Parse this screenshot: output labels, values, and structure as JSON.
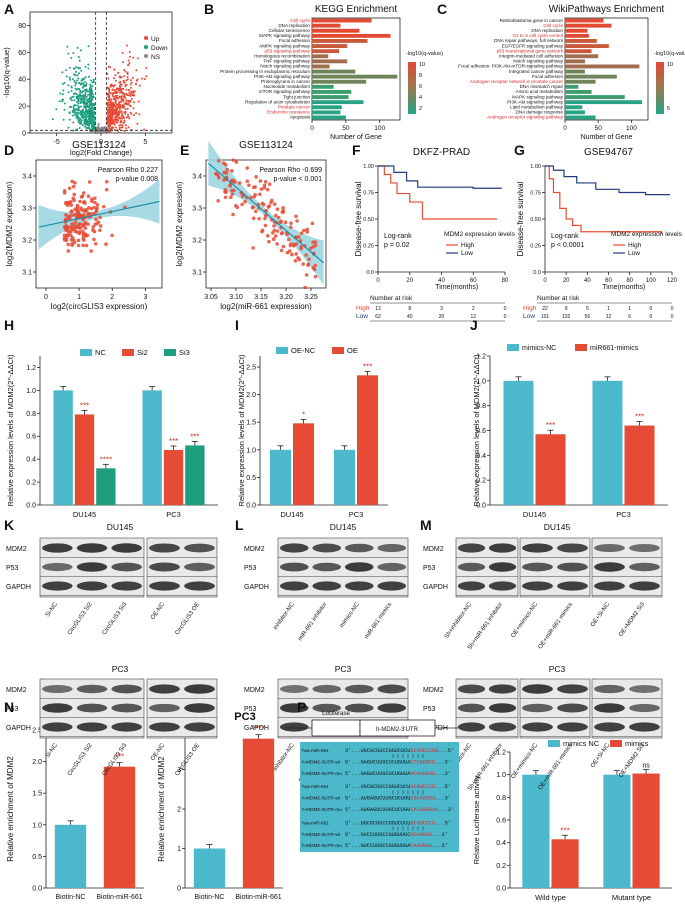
{
  "colors": {
    "teal": "#4bb8cc",
    "red": "#e64b35",
    "green": "#1e9e7e",
    "navy": "#1f3d7a",
    "up": "#e64b35",
    "down": "#1e9e7e",
    "ns": "#888888",
    "blot_bg": "#e9e9e9",
    "band": "#2b2b2b",
    "seq_bg": "#4bb8cc"
  },
  "panels": {
    "A": {
      "letter": "A",
      "xlabel": "log2(Fold Change)",
      "ylabel": "-log10(q-value)",
      "legend": [
        "Up",
        "Down",
        "NS"
      ],
      "xticks": [
        "-5",
        "0",
        "5"
      ],
      "yticks": [
        "0",
        "20",
        "40",
        "60",
        "80"
      ]
    },
    "B": {
      "letter": "B",
      "title": "KEGG Enrichment",
      "xlabel": "Number of Gene",
      "colorbar_title": "-log10(q-value)",
      "colorbar_ticks": [
        "10",
        "8",
        "6",
        "4",
        "2"
      ],
      "xticks": [
        "0",
        "50",
        "100"
      ],
      "items": [
        {
          "label": "Cell cycle",
          "value": 88,
          "highlight": true
        },
        {
          "label": "DNA replication",
          "value": 42,
          "highlight": false
        },
        {
          "label": "Cellular senescence",
          "value": 70,
          "highlight": false
        },
        {
          "label": "MAPK signaling pathway",
          "value": 116,
          "highlight": false
        },
        {
          "label": "Focal adhesion",
          "value": 82,
          "highlight": false
        },
        {
          "label": "AMPK signaling pathway",
          "value": 52,
          "highlight": false
        },
        {
          "label": "p53 signaling pathway",
          "value": 40,
          "highlight": true
        },
        {
          "label": "Homologous recombination",
          "value": 24,
          "highlight": false
        },
        {
          "label": "TNF signaling pathway",
          "value": 52,
          "highlight": false
        },
        {
          "label": "Notch signaling pathway",
          "value": 26,
          "highlight": false
        },
        {
          "label": "Protein processing in endoplasmic reticulum",
          "value": 64,
          "highlight": false
        },
        {
          "label": "PI3K-Akt signaling pathway",
          "value": 126,
          "highlight": false
        },
        {
          "label": "Proteoglycans in cancer",
          "value": 80,
          "highlight": false
        },
        {
          "label": "Nucleotide metabolism",
          "value": 32,
          "highlight": false
        },
        {
          "label": "mTOR signaling pathway",
          "value": 58,
          "highlight": false
        },
        {
          "label": "Tight junction",
          "value": 54,
          "highlight": false
        },
        {
          "label": "Regulation of actin cytoskeleton",
          "value": 76,
          "highlight": false
        },
        {
          "label": "Prostate cancer",
          "value": 44,
          "highlight": true
        },
        {
          "label": "Endocrine resistance",
          "value": 42,
          "highlight": true
        },
        {
          "label": "Apoptosis",
          "value": 50,
          "highlight": false
        }
      ]
    },
    "C": {
      "letter": "C",
      "title": "WikiPathways Enrichment",
      "xlabel": "Number of Gene",
      "colorbar_title": "-log10(q-value)",
      "colorbar_ticks": [
        "10",
        "5"
      ],
      "xticks": [
        "0",
        "50",
        "100"
      ],
      "items": [
        {
          "label": "Retinoblastoma gene in cancer",
          "value": 58,
          "highlight": false
        },
        {
          "label": "Cell cycle",
          "value": 70,
          "highlight": true
        },
        {
          "label": "DNA replication",
          "value": 34,
          "highlight": false
        },
        {
          "label": "G1 to S cell cycle control",
          "value": 36,
          "highlight": true
        },
        {
          "label": "DNA repair pathways, full network",
          "value": 48,
          "highlight": false
        },
        {
          "label": "EGF/EGFR signaling pathway",
          "value": 66,
          "highlight": false
        },
        {
          "label": "p53 transcriptional gene network",
          "value": 40,
          "highlight": true
        },
        {
          "label": "Integrin-mediated cell adhesion",
          "value": 50,
          "highlight": false
        },
        {
          "label": "Notch signaling pathway",
          "value": 30,
          "highlight": false
        },
        {
          "label": "Focal adhesion: PI3K-Akt-mTOR-signaling pathway",
          "value": 112,
          "highlight": false
        },
        {
          "label": "Integrated cancer pathway",
          "value": 30,
          "highlight": false
        },
        {
          "label": "Focal adhesion",
          "value": 78,
          "highlight": false
        },
        {
          "label": "Androgen receptor network in prostate cancer",
          "value": 46,
          "highlight": true
        },
        {
          "label": "DNA mismatch repair",
          "value": 20,
          "highlight": false
        },
        {
          "label": "Amino acid metabolism",
          "value": 40,
          "highlight": false
        },
        {
          "label": "MAPK signaling pathway",
          "value": 90,
          "highlight": false
        },
        {
          "label": "PI3K-Akt signaling pathway",
          "value": 116,
          "highlight": false
        },
        {
          "label": "Lipid metabolism pathway",
          "value": 26,
          "highlight": false
        },
        {
          "label": "DNA damage response",
          "value": 30,
          "highlight": false
        },
        {
          "label": "Androgen receptor signaling pathway",
          "value": 46,
          "highlight": true
        }
      ]
    },
    "D": {
      "letter": "D",
      "title": "GSE113124",
      "stat1": "Pearson Rho 0.227",
      "stat2": "p-value 0.008",
      "xlabel": "log2(circGLIS3 expression)",
      "ylabel": "log2(MDM2 expression)",
      "xticks": [
        "0",
        "1",
        "2",
        "3"
      ],
      "yticks": [
        "3.1",
        "3.2",
        "3.3",
        "3.4"
      ]
    },
    "E": {
      "letter": "E",
      "title": "GSE113124",
      "stat1": "Pearson Rho -0.699",
      "stat2": "p-value < 0.001",
      "xlabel": "log2(miR-661 expression)",
      "ylabel": "log2(MDM2 expression)",
      "xticks": [
        "3.05",
        "3.10",
        "3.15",
        "3.20",
        "3.25"
      ],
      "yticks": [
        "3.1",
        "3.2",
        "3.3",
        "3.4"
      ]
    },
    "F": {
      "letter": "F",
      "title": "DKFZ-PRAD",
      "ylabel": "Disease-free survival",
      "xlabel": "Time(months)",
      "logrank1": "Log-rank",
      "logrank2": "p = 0.02",
      "legend_title": "MDM2 expression levels",
      "legend_high": "High",
      "legend_low": "Low",
      "xticks": [
        "0",
        "20",
        "40",
        "60",
        "80"
      ],
      "yticks": [
        "0.0",
        "0.25",
        "0.50",
        "0.75",
        "1.00"
      ],
      "risk_title": "Number at risk",
      "risk_high_label": "High",
      "risk_low_label": "Low",
      "risk_high": [
        "13",
        "8",
        "3",
        "2",
        "0"
      ],
      "risk_low": [
        "62",
        "40",
        "20",
        "12",
        "0"
      ]
    },
    "G": {
      "letter": "G",
      "title": "GSE94767",
      "ylabel": "Disease-free survival",
      "xlabel": "Time(months)",
      "logrank1": "Log-rank",
      "logrank2": "p < 0.0001",
      "legend_title": "MDM2 expression levels",
      "legend_high": "High",
      "legend_low": "Low",
      "xticks": [
        "0",
        "20",
        "40",
        "60",
        "80",
        "100",
        "120"
      ],
      "yticks": [
        "0.0",
        "0.25",
        "0.50",
        "0.75",
        "1.00"
      ],
      "risk_title": "Number at risk",
      "risk_high_label": "High",
      "risk_low_label": "Low",
      "risk_high": [
        "22",
        "9",
        "5",
        "1",
        "1",
        "0",
        "0"
      ],
      "risk_low": [
        "101",
        "132",
        "56",
        "12",
        "6",
        "0",
        "0"
      ]
    },
    "H": {
      "letter": "H",
      "ylabel": "Relative expression levels of MDM2(2^-ΔΔCt)",
      "legend": [
        "NC",
        "Si2",
        "Si3"
      ],
      "groups": [
        "DU145",
        "PC3"
      ],
      "values": [
        [
          1.0,
          0.79,
          0.32
        ],
        [
          1.0,
          0.48,
          0.52
        ]
      ],
      "sig": [
        [
          "",
          "***",
          "****"
        ],
        [
          "",
          "***",
          "***"
        ]
      ],
      "yticks": [
        "0.0",
        "0.2",
        "0.4",
        "0.6",
        "0.8",
        "1.0",
        "1.2"
      ],
      "ymax": 1.3
    },
    "I": {
      "letter": "I",
      "ylabel": "Relative expression levels of MDM2(2^-ΔΔCt)",
      "legend": [
        "OE-NC",
        "OE"
      ],
      "groups": [
        "DU145",
        "PC3"
      ],
      "values": [
        [
          1.0,
          1.48
        ],
        [
          1.0,
          2.35
        ]
      ],
      "sig": [
        [
          "",
          "*"
        ],
        [
          "",
          "***"
        ]
      ],
      "yticks": [
        "0.0",
        "0.5",
        "1.0",
        "1.5",
        "2.0",
        "2.5"
      ],
      "ymax": 2.7
    },
    "J": {
      "letter": "J",
      "ylabel": "Relative expression levels of MDM2(2^-ΔΔCt)",
      "legend": [
        "mimics-NC",
        "miR661-mimics"
      ],
      "groups": [
        "DU145",
        "PC3"
      ],
      "values": [
        [
          1.0,
          0.57
        ],
        [
          1.0,
          0.64
        ]
      ],
      "sig": [
        [
          "",
          "***"
        ],
        [
          "",
          "***"
        ]
      ],
      "yticks": [
        "0.0",
        "0.2",
        "0.4",
        "0.6",
        "0.8",
        "1.0",
        "1.2"
      ],
      "ymax": 1.2
    },
    "K": {
      "letter": "K",
      "cell1": "DU145",
      "cell2": "PC3",
      "rows": [
        "MDM2",
        "P53",
        "GAPDH"
      ],
      "lanes_left": [
        "Si-NC",
        "CircGLIS3 Si2",
        "CircGLIS3 Si3"
      ],
      "lanes_right": [
        "OE-NC",
        "CircGLIS3 OE"
      ]
    },
    "L": {
      "letter": "L",
      "cell1": "DU145",
      "cell2": "PC3",
      "rows": [
        "MDM2",
        "P53",
        "GAPDH"
      ],
      "lanes": [
        "inhibitor-NC",
        "miR-661 inhibitor",
        "mimics-NC",
        "miR-661 mimics"
      ]
    },
    "M": {
      "letter": "M",
      "cell1": "DU145",
      "cell2": "PC3",
      "rows": [
        "MDM2",
        "P53",
        "GAPDH"
      ],
      "lanes": [
        "Sh+inhibitor-NC",
        "Sh+miR-661 inhibitor",
        "OE+mimics-NC",
        "OE+miR-661 mimics",
        "OE+Si-NC",
        "OE+MDM2 Si3"
      ]
    },
    "N": {
      "letter": "N",
      "title": "DU145",
      "ylabel": "Relative enrichment of MDM2",
      "categories": [
        "Biotin-NC",
        "Biotin-miR-661"
      ],
      "values": [
        1.0,
        1.92
      ],
      "sig": "***",
      "yticks": [
        "0.0",
        "0.5",
        "1.0",
        "1.5",
        "2.0",
        "2.5"
      ],
      "ymax": 2.5
    },
    "O": {
      "letter": "O",
      "title": "PC3",
      "ylabel": "Relative enrichment of MDM2",
      "categories": [
        "Biotin-NC",
        "Biotin-miR-661"
      ],
      "values": [
        1.0,
        3.78
      ],
      "sig": "****",
      "yticks": [
        "0",
        "1",
        "2",
        "3",
        "4"
      ],
      "ymax": 4.0
    },
    "P": {
      "letter": "P",
      "box1": "Luciferase",
      "box2": "h-MDM2-3'UTR",
      "seq": [
        {
          "name": "hsa-miR-661",
          "seq": "3'...UGCGCGUCCGGUCUCUGCGUCCCUG...5'"
        },
        {
          "name": "h-MDM2-3UTR-wt",
          "seq": "5'...GAGUCUUGCUCUGUUACCCAGGCU...3'"
        },
        {
          "name": "h-MDM2-3UTR-mu",
          "seq": "5'...GAGUCUUGCUCUGUUAACAAUGAU...3'"
        },
        {
          "name": "hsa-miR-661",
          "seq": "3'...UGCGCGUCCGGUCUCUGCGUCCCU...5'"
        },
        {
          "name": "h-MDM2-3UTR-wt",
          "seq": "5'...AUGAGUCUUGCUCUGUCGCAGGGA...3'"
        },
        {
          "name": "h-MDM2-3UTR-mu",
          "seq": "5'...AUGAGUCUUGCUCUGUCACAAUGAU...3'"
        },
        {
          "name": "hsa-miR-661",
          "seq": "3'...UGCGCGUCCGGUCUCUGCGUCCCU...5'"
        },
        {
          "name": "h-MDM2-3UTR-wt",
          "seq": "5'...GUCCUUGCCGUGUUGCGCAGGGA...3'"
        },
        {
          "name": "h-MDM2-3UTR-mu",
          "seq": "5'...GUCCUUGCCGUGUUGACAAUGAU...3'"
        }
      ]
    },
    "Q": {
      "letter": "Q",
      "ylabel": "Relative Luciferase activity",
      "legend": [
        "mimics NC",
        "mimics"
      ],
      "groups": [
        "Wild type",
        "Mutant type"
      ],
      "values": [
        [
          1.0,
          0.43
        ],
        [
          1.0,
          1.01
        ]
      ],
      "sig": [
        "***",
        "ns"
      ],
      "yticks": [
        "0.0",
        "0.2",
        "0.4",
        "0.6",
        "0.8",
        "1.0",
        "1.2"
      ],
      "ymax": 1.2
    }
  }
}
